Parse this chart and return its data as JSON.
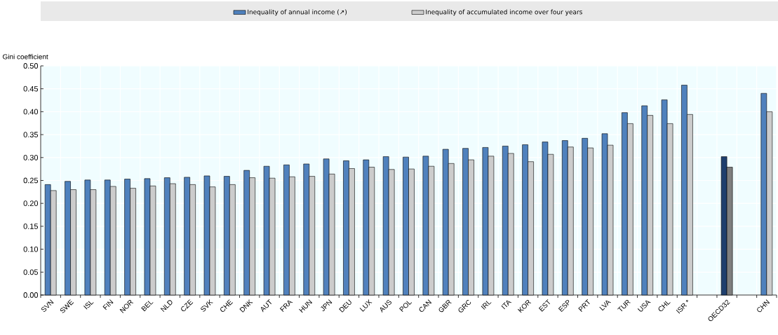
{
  "chart_data": {
    "type": "bar",
    "ylabel": "Gini coefficient",
    "categories": [
      "SVN",
      "SWE",
      "ISL",
      "FIN",
      "NOR",
      "BEL",
      "NLD",
      "CZE",
      "SVK",
      "CHE",
      "DNK",
      "AUT",
      "FRA",
      "HUN",
      "JPN",
      "DEU",
      "LUX",
      "AUS",
      "POL",
      "CAN",
      "GBR",
      "GRC",
      "IRL",
      "ITA",
      "KOR",
      "EST",
      "ESP",
      "PRT",
      "LVA",
      "TUR",
      "USA",
      "CHL",
      "ISR *",
      null,
      "OECD32",
      null,
      "CHN"
    ],
    "series": [
      {
        "name": "Inequality of annual income (↗)",
        "color": "#4f81bd",
        "colors": [
          "#4f81bd",
          "#4f81bd",
          "#4f81bd",
          "#4f81bd",
          "#4f81bd",
          "#4f81bd",
          "#4f81bd",
          "#4f81bd",
          "#4f81bd",
          "#4f81bd",
          "#4f81bd",
          "#4f81bd",
          "#4f81bd",
          "#4f81bd",
          "#4f81bd",
          "#4f81bd",
          "#4f81bd",
          "#4f81bd",
          "#4f81bd",
          "#4f81bd",
          "#4f81bd",
          "#4f81bd",
          "#4f81bd",
          "#4f81bd",
          "#4f81bd",
          "#4f81bd",
          "#4f81bd",
          "#4f81bd",
          "#4f81bd",
          "#4f81bd",
          "#4f81bd",
          "#4f81bd",
          "#4f81bd",
          "#4f81bd",
          "#1f3f6e",
          "#4f81bd",
          "#4f81bd"
        ],
        "values": [
          0.241,
          0.248,
          0.251,
          0.251,
          0.253,
          0.254,
          0.256,
          0.257,
          0.26,
          0.259,
          0.272,
          0.281,
          0.284,
          0.286,
          0.297,
          0.293,
          0.295,
          0.302,
          0.301,
          0.303,
          0.318,
          0.32,
          0.322,
          0.325,
          0.328,
          0.334,
          0.337,
          0.342,
          0.352,
          0.398,
          0.413,
          0.426,
          0.458,
          null,
          0.302,
          null,
          0.44
        ]
      },
      {
        "name": "Inequality of accumulated income over four years",
        "color": "#cccccc",
        "colors": [
          "#cccccc",
          "#cccccc",
          "#cccccc",
          "#cccccc",
          "#cccccc",
          "#cccccc",
          "#cccccc",
          "#cccccc",
          "#cccccc",
          "#cccccc",
          "#cccccc",
          "#cccccc",
          "#cccccc",
          "#cccccc",
          "#cccccc",
          "#cccccc",
          "#cccccc",
          "#cccccc",
          "#cccccc",
          "#cccccc",
          "#cccccc",
          "#cccccc",
          "#cccccc",
          "#cccccc",
          "#cccccc",
          "#cccccc",
          "#cccccc",
          "#cccccc",
          "#cccccc",
          "#cccccc",
          "#cccccc",
          "#cccccc",
          "#cccccc",
          "#cccccc",
          "#7f7f7f",
          "#cccccc",
          "#cccccc"
        ],
        "values": [
          0.228,
          0.23,
          0.23,
          0.237,
          0.233,
          0.238,
          0.243,
          0.241,
          0.236,
          0.241,
          0.256,
          0.255,
          0.258,
          0.259,
          0.264,
          0.276,
          0.279,
          0.274,
          0.275,
          0.281,
          0.287,
          0.295,
          0.303,
          0.309,
          0.291,
          0.307,
          0.323,
          0.321,
          0.327,
          0.374,
          0.392,
          0.374,
          0.394,
          null,
          0.279,
          null,
          0.4
        ]
      }
    ],
    "ylim": [
      0,
      0.5
    ],
    "yticks": [
      {
        "value": 0,
        "label": "0.00"
      },
      {
        "value": 0.05,
        "label": "0.05"
      },
      {
        "value": 0.1,
        "label": "0.10"
      },
      {
        "value": 0.15,
        "label": "0.15"
      },
      {
        "value": 0.2,
        "label": "0.20"
      },
      {
        "value": 0.25,
        "label": "0.25"
      },
      {
        "value": 0.3,
        "label": "0.30"
      },
      {
        "value": 0.35,
        "label": "0.35"
      },
      {
        "value": 0.4,
        "label": "0.40"
      },
      {
        "value": 0.45,
        "label": "0.45"
      },
      {
        "value": 0.5,
        "label": "0.50"
      }
    ],
    "grid": true,
    "legend": "top"
  }
}
